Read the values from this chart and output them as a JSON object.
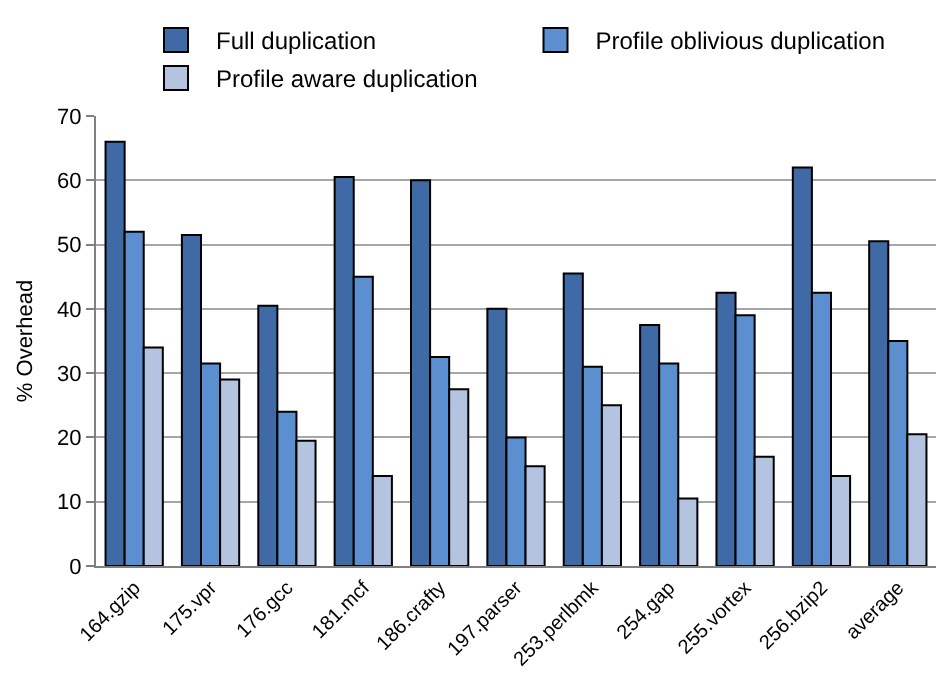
{
  "chart_data": {
    "type": "bar",
    "ylabel": "% Overhead",
    "categories": [
      "164.gzip",
      "175.vpr",
      "176.gcc",
      "181.mcf",
      "186.crafty",
      "197.parser",
      "253.perlbmk",
      "254.gap",
      "255.vortex",
      "256.bzip2",
      "average"
    ],
    "series": [
      {
        "name": "Full duplication",
        "color": "#3f6aa6",
        "values": [
          66,
          51.5,
          40.5,
          60.5,
          60,
          40,
          45.5,
          37.5,
          42.5,
          62,
          50.5
        ]
      },
      {
        "name": "Profile oblivious duplication",
        "color": "#5b8fd0",
        "values": [
          52,
          31.5,
          24,
          45,
          32.5,
          20,
          31,
          31.5,
          39,
          42.5,
          35
        ]
      },
      {
        "name": "Profile aware duplication",
        "color": "#b4c3e0",
        "values": [
          34,
          29,
          19.5,
          14,
          27.5,
          15.5,
          25,
          10.5,
          17,
          14,
          20.5
        ]
      }
    ],
    "ylim": [
      0,
      70
    ],
    "yticks": [
      0,
      10,
      20,
      30,
      40,
      50,
      60,
      70
    ],
    "grid": "y",
    "legend": "top"
  }
}
